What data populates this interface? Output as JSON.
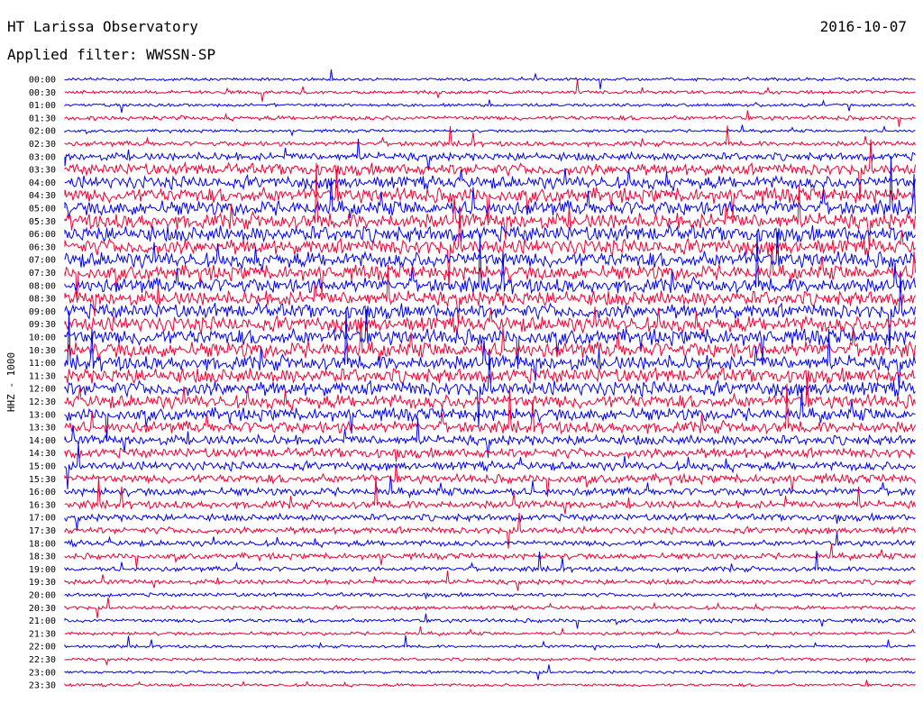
{
  "header": {
    "title": "HT Larissa Observatory",
    "date": "2016-10-07",
    "filter_text": "Applied filter: WWSSN-SP"
  },
  "colors": {
    "blue": "#0000ee",
    "red": "#ee0033"
  },
  "chart_data": {
    "type": "line",
    "ylabel": "HHZ - 1000",
    "rows": [
      {
        "label": "00:00",
        "color": "blue",
        "amplitude": 0.6
      },
      {
        "label": "00:30",
        "color": "red",
        "amplitude": 0.7
      },
      {
        "label": "01:00",
        "color": "blue",
        "amplitude": 0.6
      },
      {
        "label": "01:30",
        "color": "red",
        "amplitude": 0.9
      },
      {
        "label": "02:00",
        "color": "blue",
        "amplitude": 0.6
      },
      {
        "label": "02:30",
        "color": "red",
        "amplitude": 1.0
      },
      {
        "label": "03:00",
        "color": "blue",
        "amplitude": 1.6
      },
      {
        "label": "03:30",
        "color": "red",
        "amplitude": 2.4
      },
      {
        "label": "04:00",
        "color": "blue",
        "amplitude": 2.6
      },
      {
        "label": "04:30",
        "color": "red",
        "amplitude": 3.0
      },
      {
        "label": "05:00",
        "color": "blue",
        "amplitude": 3.0
      },
      {
        "label": "05:30",
        "color": "red",
        "amplitude": 3.2
      },
      {
        "label": "06:00",
        "color": "blue",
        "amplitude": 3.2
      },
      {
        "label": "06:30",
        "color": "red",
        "amplitude": 3.2
      },
      {
        "label": "07:00",
        "color": "blue",
        "amplitude": 3.2
      },
      {
        "label": "07:30",
        "color": "red",
        "amplitude": 3.0
      },
      {
        "label": "08:00",
        "color": "blue",
        "amplitude": 3.0
      },
      {
        "label": "08:30",
        "color": "red",
        "amplitude": 3.0
      },
      {
        "label": "09:00",
        "color": "blue",
        "amplitude": 3.0
      },
      {
        "label": "09:30",
        "color": "red",
        "amplitude": 3.2
      },
      {
        "label": "10:00",
        "color": "blue",
        "amplitude": 3.2
      },
      {
        "label": "10:30",
        "color": "red",
        "amplitude": 3.2
      },
      {
        "label": "11:00",
        "color": "blue",
        "amplitude": 3.0
      },
      {
        "label": "11:30",
        "color": "red",
        "amplitude": 3.0
      },
      {
        "label": "12:00",
        "color": "blue",
        "amplitude": 3.0
      },
      {
        "label": "12:30",
        "color": "red",
        "amplitude": 2.8
      },
      {
        "label": "13:00",
        "color": "blue",
        "amplitude": 2.6
      },
      {
        "label": "13:30",
        "color": "red",
        "amplitude": 2.4
      },
      {
        "label": "14:00",
        "color": "blue",
        "amplitude": 2.0
      },
      {
        "label": "14:30",
        "color": "red",
        "amplitude": 2.0
      },
      {
        "label": "15:00",
        "color": "blue",
        "amplitude": 1.8
      },
      {
        "label": "15:30",
        "color": "red",
        "amplitude": 1.8
      },
      {
        "label": "16:00",
        "color": "blue",
        "amplitude": 1.6
      },
      {
        "label": "16:30",
        "color": "red",
        "amplitude": 1.6
      },
      {
        "label": "17:00",
        "color": "blue",
        "amplitude": 1.4
      },
      {
        "label": "17:30",
        "color": "red",
        "amplitude": 1.4
      },
      {
        "label": "18:00",
        "color": "blue",
        "amplitude": 1.2
      },
      {
        "label": "18:30",
        "color": "red",
        "amplitude": 1.2
      },
      {
        "label": "19:00",
        "color": "blue",
        "amplitude": 1.0
      },
      {
        "label": "19:30",
        "color": "red",
        "amplitude": 1.0
      },
      {
        "label": "20:00",
        "color": "blue",
        "amplitude": 0.8
      },
      {
        "label": "20:30",
        "color": "red",
        "amplitude": 0.8
      },
      {
        "label": "21:00",
        "color": "blue",
        "amplitude": 0.8
      },
      {
        "label": "21:30",
        "color": "red",
        "amplitude": 0.7
      },
      {
        "label": "22:00",
        "color": "blue",
        "amplitude": 0.6
      },
      {
        "label": "22:30",
        "color": "red",
        "amplitude": 0.6
      },
      {
        "label": "23:00",
        "color": "blue",
        "amplitude": 0.6
      },
      {
        "label": "23:30",
        "color": "red",
        "amplitude": 0.6
      }
    ]
  }
}
